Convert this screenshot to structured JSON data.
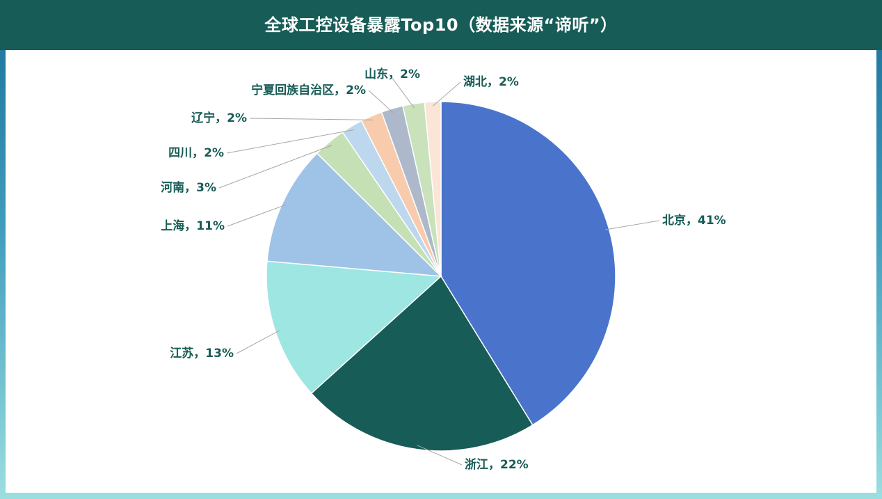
{
  "header": {
    "title": "全球工控设备暴露Top10（数据来源“谛听”）"
  },
  "colors": {
    "header_bg": "#175c56",
    "label_text": "#175c56",
    "leader_line": "#a6a6a6"
  },
  "chart_data": {
    "type": "pie",
    "title": "全球工控设备暴露Top10（数据来源“谛听”）",
    "slices": [
      {
        "name": "北京",
        "value": 41,
        "label": "北京，41%",
        "color": "#4a74cb"
      },
      {
        "name": "浙江",
        "value": 22,
        "label": "浙江，22%",
        "color": "#175c56"
      },
      {
        "name": "江苏",
        "value": 13,
        "label": "江苏，13%",
        "color": "#9de6e2"
      },
      {
        "name": "上海",
        "value": 11,
        "label": "上海，11%",
        "color": "#9fc3e7"
      },
      {
        "name": "河南",
        "value": 3,
        "label": "河南，3%",
        "color": "#c5e0b4"
      },
      {
        "name": "四川",
        "value": 2,
        "label": "四川，2%",
        "color": "#bdd7ee"
      },
      {
        "name": "辽宁",
        "value": 2,
        "label": "辽宁，2%",
        "color": "#f8cbad"
      },
      {
        "name": "宁夏回族自治区",
        "value": 2,
        "label": "宁夏回族自治区，2%",
        "color": "#adb9ca"
      },
      {
        "name": "山东",
        "value": 2,
        "label": "山东，2%",
        "color": "#c9e2bb"
      },
      {
        "name": "湖北",
        "value": 1.5,
        "label": "湖北，2%",
        "color": "#fbe5d6"
      }
    ]
  }
}
